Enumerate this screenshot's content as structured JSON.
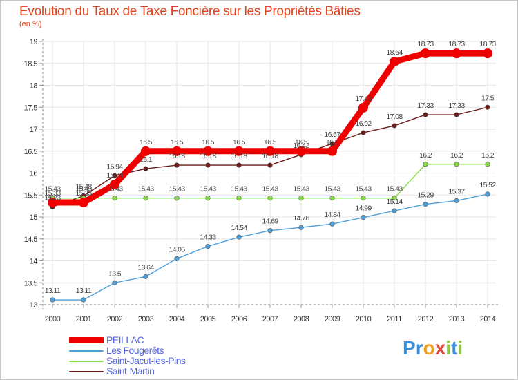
{
  "title": "Evolution du Taux de Taxe Foncière sur les Propriétés Bâties",
  "subtitle": "(en %)",
  "logo": {
    "letters": [
      "P",
      "r",
      "o",
      "x",
      "i",
      "t",
      "i"
    ],
    "colors": [
      "#3a8fd8",
      "#3a8fd8",
      "#f0a020",
      "#e8443a",
      "#8cc63f",
      "#3a8fd8",
      "#8cc63f"
    ]
  },
  "chart_data": {
    "type": "line",
    "title": "Evolution du Taux de Taxe Foncière sur les Propriétés Bâties",
    "ylabel": "(en %)",
    "xlabel": "",
    "ylim": [
      13,
      19
    ],
    "yticks": [
      "13",
      "13.5",
      "14",
      "14.5",
      "15",
      "15.5",
      "16",
      "16.5",
      "17",
      "17.5",
      "18",
      "18.5",
      "19"
    ],
    "categories": [
      "2000",
      "2001",
      "2002",
      "2003",
      "2004",
      "2005",
      "2006",
      "2007",
      "2008",
      "2009",
      "2010",
      "2011",
      "2012",
      "2013",
      "2014"
    ],
    "series": [
      {
        "name": "PEILLAC",
        "color": "#ee0000",
        "values": [
          15.33,
          15.33,
          15.74,
          16.5,
          16.5,
          16.5,
          16.5,
          16.5,
          16.5,
          16.5,
          17.49,
          18.54,
          18.73,
          18.73,
          18.73
        ],
        "labels": [
          "15.33",
          "15.33",
          "15.74",
          "16.5",
          "16.5",
          "16.5",
          "16.5",
          "16.5",
          "16.5",
          "16.5",
          "17.49",
          "18.54",
          "18.73",
          "18.73",
          "18.73"
        ]
      },
      {
        "name": "Les Fougerêts",
        "color": "#4f9fd8",
        "values": [
          13.11,
          13.11,
          13.5,
          13.64,
          14.05,
          14.33,
          14.54,
          14.69,
          14.76,
          14.84,
          14.99,
          15.14,
          15.29,
          15.37,
          15.52
        ],
        "labels": [
          "13.11",
          "13.11",
          "13.5",
          "13.64",
          "14.05",
          "14.33",
          "14.54",
          "14.69",
          "14.76",
          "14.84",
          "14.99",
          "15.14",
          "15.29",
          "15.37",
          "15.52"
        ]
      },
      {
        "name": "Saint-Jacut-les-Pins",
        "color": "#88dd44",
        "values": [
          15.43,
          15.43,
          15.43,
          15.43,
          15.43,
          15.43,
          15.43,
          15.43,
          15.43,
          15.43,
          15.43,
          15.43,
          16.2,
          16.2,
          16.2
        ],
        "labels": [
          "15.43",
          "15.43",
          "15.43",
          "15.43",
          "15.43",
          "15.43",
          "15.43",
          "15.43",
          "15.43",
          "15.43",
          "15.43",
          "15.43",
          "16.2",
          "16.2",
          "16.2"
        ]
      },
      {
        "name": "Saint-Martin",
        "color": "#6b1a1a",
        "values": [
          15.23,
          15.48,
          15.94,
          16.1,
          16.18,
          16.18,
          16.18,
          16.18,
          16.42,
          16.67,
          16.92,
          17.08,
          17.33,
          17.33,
          17.5
        ],
        "labels": [
          "15.23",
          "15.48",
          "15.94",
          "16.1",
          "16.18",
          "16.18",
          "16.18",
          "16.18",
          "16.42",
          "16.67",
          "16.92",
          "17.08",
          "17.33",
          "17.33",
          "17.5"
        ]
      }
    ],
    "legend_position": "bottom-left"
  }
}
